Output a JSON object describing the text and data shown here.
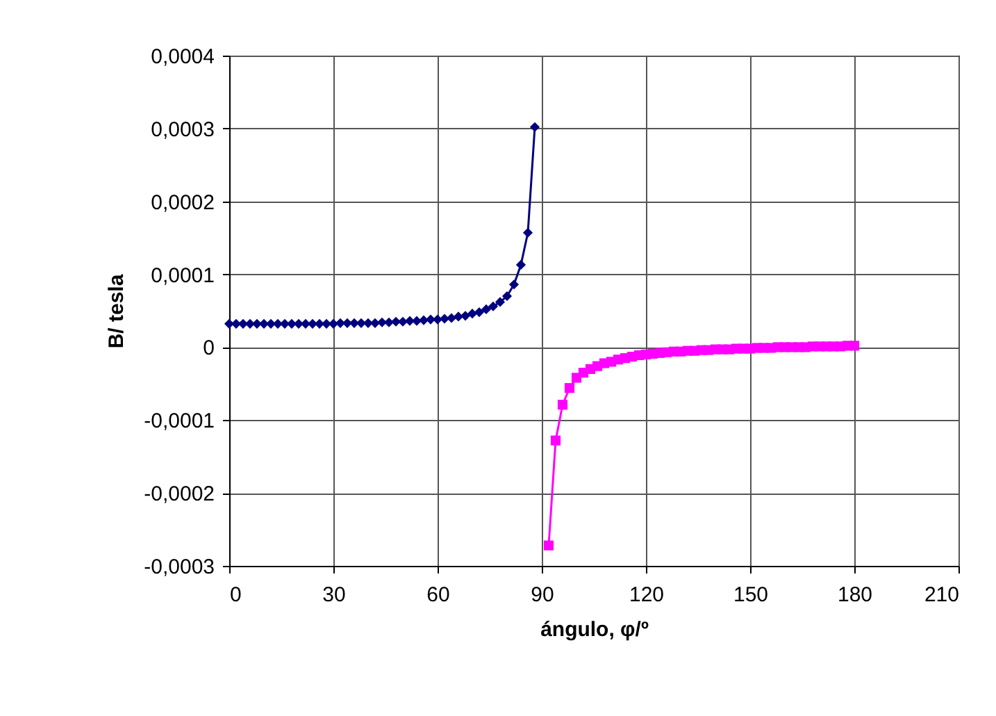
{
  "chart_data": {
    "type": "line",
    "xlabel": "ángulo, φ/º",
    "ylabel": "B/ tesla",
    "xlim": [
      0,
      210
    ],
    "xticks": [
      0,
      30,
      60,
      90,
      120,
      150,
      180,
      210
    ],
    "ylim": [
      -0.0003,
      0.0004
    ],
    "yticks": [
      {
        "value": -0.0003,
        "label": "-0,0003"
      },
      {
        "value": -0.0002,
        "label": "-0,0002"
      },
      {
        "value": -0.0001,
        "label": "-0,0001"
      },
      {
        "value": 0,
        "label": "0"
      },
      {
        "value": 0.0001,
        "label": "0,0001"
      },
      {
        "value": 0.0002,
        "label": "0,0002"
      },
      {
        "value": 0.0003,
        "label": "0,0003"
      },
      {
        "value": 0.0004,
        "label": "0,0004"
      }
    ],
    "grid": true,
    "series": [
      {
        "color": "#000080",
        "marker": "diamond",
        "x": [
          0,
          2,
          4,
          6,
          8,
          10,
          12,
          14,
          16,
          18,
          20,
          22,
          24,
          26,
          28,
          30,
          32,
          34,
          36,
          38,
          40,
          42,
          44,
          46,
          48,
          50,
          52,
          54,
          56,
          58,
          60,
          62,
          64,
          66,
          68,
          70,
          72,
          74,
          76,
          78,
          80,
          82,
          84,
          86,
          88
        ],
        "values": [
          3.2e-05,
          3.2e-05,
          3.2e-05,
          3.2e-05,
          3.2e-05,
          3.2e-05,
          3.2e-05,
          3.2e-05,
          3.2e-05,
          3.2e-05,
          3.2e-05,
          3.2e-05,
          3.2e-05,
          3.2e-05,
          3.2e-05,
          3.2e-05,
          3.3e-05,
          3.3e-05,
          3.3e-05,
          3.3e-05,
          3.3e-05,
          3.3e-05,
          3.4e-05,
          3.4e-05,
          3.5e-05,
          3.5e-05,
          3.6e-05,
          3.6e-05,
          3.7e-05,
          3.8e-05,
          3.8e-05,
          3.9e-05,
          4e-05,
          4.2e-05,
          4.3e-05,
          4.6e-05,
          4.8e-05,
          5.2e-05,
          5.6e-05,
          6.2e-05,
          7e-05,
          8.6e-05,
          0.000113,
          0.000157,
          0.000302
        ]
      },
      {
        "color": "#ff00ff",
        "marker": "square",
        "x": [
          92,
          94,
          96,
          98,
          100,
          102,
          104,
          106,
          108,
          110,
          112,
          114,
          116,
          118,
          120,
          122,
          124,
          126,
          128,
          130,
          132,
          134,
          136,
          138,
          140,
          142,
          144,
          146,
          148,
          150,
          152,
          154,
          156,
          158,
          160,
          162,
          164,
          166,
          168,
          170,
          172,
          174,
          176,
          178,
          180
        ],
        "values": [
          -0.000272,
          -0.000128,
          -7.9e-05,
          -5.6e-05,
          -4.2e-05,
          -3.5e-05,
          -3e-05,
          -2.6e-05,
          -2.2e-05,
          -2e-05,
          -1.7e-05,
          -1.5e-05,
          -1.3e-05,
          -1.1e-05,
          -1e-05,
          -9e-06,
          -8e-06,
          -7e-06,
          -6e-06,
          -6e-06,
          -5e-06,
          -5e-06,
          -4e-06,
          -4e-06,
          -3e-06,
          -3e-06,
          -3e-06,
          -2e-06,
          -2e-06,
          -2e-06,
          -1e-06,
          -1e-06,
          -1e-06,
          0,
          0,
          0,
          0,
          0,
          1e-06,
          1e-06,
          1e-06,
          1e-06,
          1e-06,
          2e-06,
          2e-06
        ]
      }
    ]
  }
}
